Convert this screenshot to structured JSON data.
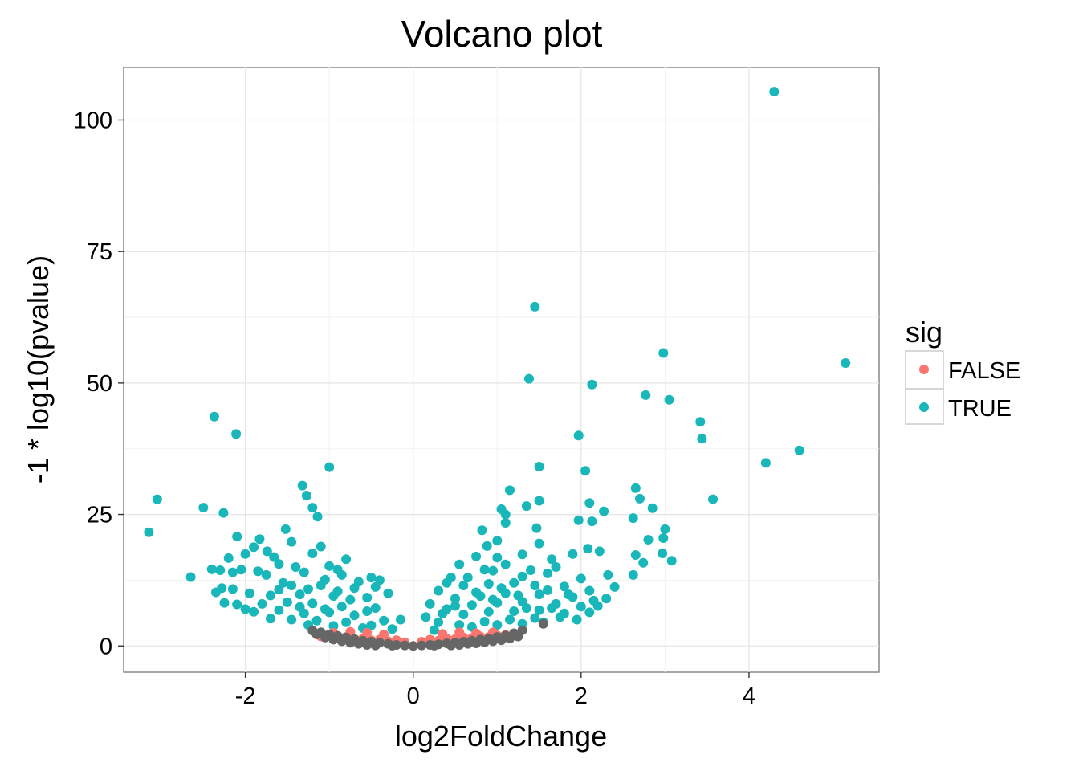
{
  "chart_data": {
    "type": "scatter",
    "title": "Volcano plot",
    "xlabel": "log2FoldChange",
    "ylabel": "-1 * log10(pvalue)",
    "xlim": [
      -3.45,
      5.55
    ],
    "ylim": [
      -5,
      110
    ],
    "x_ticks": [
      -2,
      0,
      2,
      4
    ],
    "y_ticks": [
      0,
      25,
      50,
      75,
      100
    ],
    "x_tick_labels": [
      "-2",
      "0",
      "2",
      "4"
    ],
    "y_tick_labels": [
      "0",
      "25",
      "50",
      "75",
      "100"
    ],
    "grid": true,
    "legend": {
      "title": "sig",
      "placement": "right",
      "entries": [
        {
          "label": "FALSE",
          "color": "#F8766D"
        },
        {
          "label": "TRUE",
          "color": "#19B7B9"
        }
      ]
    },
    "series": [
      {
        "name": "FALSE",
        "color": "#F8766D",
        "points": [
          [
            -1.1,
            1.8
          ],
          [
            -1.0,
            1.9
          ],
          [
            -0.9,
            1.5
          ],
          [
            -0.8,
            1.7
          ],
          [
            -0.7,
            1.3
          ],
          [
            -0.6,
            1.4
          ],
          [
            -0.5,
            1.1
          ],
          [
            -0.4,
            1.2
          ],
          [
            -0.3,
            0.9
          ],
          [
            -0.2,
            1.1
          ],
          [
            -0.1,
            0.7
          ],
          [
            0.1,
            0.8
          ],
          [
            0.2,
            1.2
          ],
          [
            0.3,
            1.0
          ],
          [
            0.4,
            1.4
          ],
          [
            0.5,
            1.3
          ],
          [
            0.6,
            1.6
          ],
          [
            0.7,
            1.5
          ],
          [
            0.8,
            1.8
          ],
          [
            0.9,
            1.7
          ],
          [
            1.0,
            2.0
          ],
          [
            1.1,
            2.1
          ],
          [
            -0.55,
            2.5
          ],
          [
            -0.35,
            2.2
          ],
          [
            0.35,
            2.3
          ],
          [
            0.55,
            2.6
          ],
          [
            0.75,
            2.4
          ],
          [
            -0.75,
            2.7
          ],
          [
            0.95,
            2.6
          ],
          [
            -0.95,
            2.5
          ]
        ]
      },
      {
        "name": "TRUE",
        "color": "#19B7B9",
        "points": [
          [
            4.3,
            105.4
          ],
          [
            1.45,
            64.5
          ],
          [
            2.98,
            55.7
          ],
          [
            5.15,
            53.8
          ],
          [
            1.38,
            50.8
          ],
          [
            2.13,
            49.7
          ],
          [
            2.77,
            47.7
          ],
          [
            3.05,
            46.8
          ],
          [
            -2.37,
            43.6
          ],
          [
            3.42,
            42.6
          ],
          [
            -2.11,
            40.3
          ],
          [
            1.97,
            40.0
          ],
          [
            3.44,
            39.4
          ],
          [
            4.6,
            37.2
          ],
          [
            4.2,
            34.8
          ],
          [
            -1.0,
            34.0
          ],
          [
            1.5,
            34.1
          ],
          [
            2.05,
            33.3
          ],
          [
            -1.32,
            30.5
          ],
          [
            2.65,
            30.0
          ],
          [
            -1.27,
            28.6
          ],
          [
            1.15,
            29.6
          ],
          [
            -3.05,
            27.9
          ],
          [
            3.57,
            27.9
          ],
          [
            2.7,
            28.0
          ],
          [
            1.5,
            27.6
          ],
          [
            2.1,
            27.2
          ],
          [
            -1.2,
            26.3
          ],
          [
            -2.5,
            26.3
          ],
          [
            1.05,
            26.0
          ],
          [
            1.35,
            26.6
          ],
          [
            2.85,
            26.2
          ],
          [
            -2.26,
            25.3
          ],
          [
            1.1,
            25.0
          ],
          [
            2.27,
            25.6
          ],
          [
            -1.14,
            24.6
          ],
          [
            1.97,
            23.9
          ],
          [
            2.13,
            23.7
          ],
          [
            1.47,
            22.4
          ],
          [
            3.0,
            22.2
          ],
          [
            -3.15,
            21.6
          ],
          [
            -1.52,
            22.2
          ],
          [
            1.1,
            23.4
          ],
          [
            0.82,
            22.0
          ],
          [
            2.62,
            24.3
          ],
          [
            -2.1,
            20.8
          ],
          [
            -1.83,
            20.3
          ],
          [
            1.0,
            20.0
          ],
          [
            2.8,
            20.2
          ],
          [
            2.98,
            20.5
          ],
          [
            -1.45,
            19.8
          ],
          [
            0.88,
            19.0
          ],
          [
            -1.9,
            18.8
          ],
          [
            -1.1,
            18.9
          ],
          [
            1.5,
            19.5
          ],
          [
            -1.74,
            18.0
          ],
          [
            2.08,
            18.5
          ],
          [
            2.22,
            18.0
          ],
          [
            0.75,
            17.0
          ],
          [
            1.65,
            16.5
          ],
          [
            2.65,
            17.3
          ],
          [
            2.97,
            17.6
          ],
          [
            -2.0,
            17.5
          ],
          [
            -1.66,
            16.9
          ],
          [
            -1.2,
            17.6
          ],
          [
            -0.8,
            16.5
          ],
          [
            -2.2,
            16.7
          ],
          [
            1.3,
            17.4
          ],
          [
            1.0,
            16.8
          ],
          [
            1.9,
            17.5
          ],
          [
            -2.15,
            14.0
          ],
          [
            -2.05,
            14.5
          ],
          [
            -1.6,
            15.6
          ],
          [
            -1.4,
            15.0
          ],
          [
            -1.0,
            15.2
          ],
          [
            3.08,
            16.2
          ],
          [
            2.74,
            15.8
          ],
          [
            0.55,
            15.5
          ],
          [
            1.7,
            15.0
          ],
          [
            -2.4,
            14.6
          ],
          [
            -2.3,
            14.4
          ],
          [
            -1.85,
            14.2
          ],
          [
            -1.3,
            14.0
          ],
          [
            -0.9,
            14.5
          ],
          [
            -0.5,
            13.0
          ],
          [
            -0.4,
            12.5
          ],
          [
            -1.75,
            13.5
          ],
          [
            -2.65,
            13.1
          ],
          [
            2.62,
            13.5
          ],
          [
            2.32,
            13.5
          ],
          [
            0.45,
            13.0
          ],
          [
            0.95,
            14.3
          ],
          [
            1.4,
            14.4
          ],
          [
            1.6,
            13.8
          ],
          [
            2.0,
            12.8
          ],
          [
            -2.28,
            11.0
          ],
          [
            -2.15,
            10.8
          ],
          [
            -1.55,
            12.0
          ],
          [
            -1.1,
            11.5
          ],
          [
            -0.7,
            11.0
          ],
          [
            -0.3,
            10.0
          ],
          [
            0.3,
            10.5
          ],
          [
            0.6,
            11.5
          ],
          [
            0.9,
            11.8
          ],
          [
            1.2,
            12.0
          ],
          [
            1.8,
            11.3
          ],
          [
            2.4,
            11.2
          ],
          [
            2.1,
            10.5
          ],
          [
            -2.35,
            10.2
          ],
          [
            -1.95,
            10.0
          ],
          [
            -1.7,
            9.6
          ],
          [
            -1.35,
            9.8
          ],
          [
            -0.95,
            9.5
          ],
          [
            -0.55,
            9.2
          ],
          [
            0.2,
            8.0
          ],
          [
            0.5,
            9.0
          ],
          [
            0.8,
            9.5
          ],
          [
            1.1,
            10.0
          ],
          [
            1.5,
            9.8
          ],
          [
            1.9,
            9.3
          ],
          [
            2.3,
            9.0
          ],
          [
            -2.25,
            8.2
          ],
          [
            -2.1,
            7.9
          ],
          [
            -1.8,
            8.0
          ],
          [
            -1.5,
            8.3
          ],
          [
            -1.2,
            8.1
          ],
          [
            -0.85,
            7.5
          ],
          [
            -0.45,
            7.2
          ],
          [
            -0.15,
            5.0
          ],
          [
            0.15,
            5.5
          ],
          [
            0.4,
            7.0
          ],
          [
            0.7,
            7.8
          ],
          [
            1.0,
            8.2
          ],
          [
            1.3,
            8.4
          ],
          [
            1.7,
            8.0
          ],
          [
            2.0,
            7.5
          ],
          [
            2.2,
            7.6
          ],
          [
            -2.0,
            7.0
          ],
          [
            -1.9,
            6.5
          ],
          [
            -1.6,
            6.8
          ],
          [
            -1.3,
            6.2
          ],
          [
            -1.0,
            6.4
          ],
          [
            -0.7,
            5.8
          ],
          [
            -0.35,
            4.8
          ],
          [
            0.3,
            4.5
          ],
          [
            0.6,
            6.0
          ],
          [
            0.9,
            6.5
          ],
          [
            1.2,
            6.6
          ],
          [
            1.5,
            6.8
          ],
          [
            1.8,
            6.2
          ],
          [
            2.1,
            6.4
          ],
          [
            -1.7,
            5.2
          ],
          [
            -1.45,
            5.0
          ],
          [
            -1.15,
            4.8
          ],
          [
            -0.8,
            4.5
          ],
          [
            -0.5,
            3.9
          ],
          [
            -0.25,
            3.2
          ],
          [
            0.25,
            3.0
          ],
          [
            0.55,
            4.0
          ],
          [
            0.85,
            4.6
          ],
          [
            1.15,
            5.0
          ],
          [
            1.45,
            5.3
          ],
          [
            1.75,
            5.5
          ],
          [
            1.95,
            5.0
          ],
          [
            -1.25,
            4.0
          ],
          [
            -0.95,
            3.8
          ],
          [
            -0.6,
            3.4
          ],
          [
            0.7,
            3.6
          ],
          [
            1.0,
            4.0
          ],
          [
            1.3,
            4.2
          ],
          [
            1.55,
            4.5
          ],
          [
            -0.85,
            13.5
          ],
          [
            -0.65,
            12.2
          ],
          [
            -0.45,
            11.2
          ],
          [
            0.4,
            12.0
          ],
          [
            0.65,
            13.0
          ],
          [
            0.85,
            14.5
          ],
          [
            1.1,
            15.5
          ],
          [
            1.3,
            13.2
          ],
          [
            1.45,
            11.5
          ],
          [
            -1.05,
            12.6
          ],
          [
            -1.25,
            10.8
          ],
          [
            -1.45,
            11.5
          ],
          [
            -0.75,
            8.8
          ],
          [
            -0.55,
            6.6
          ],
          [
            0.35,
            6.2
          ],
          [
            0.5,
            7.6
          ],
          [
            0.75,
            10.2
          ],
          [
            1.05,
            11.0
          ],
          [
            1.25,
            9.6
          ],
          [
            1.6,
            10.6
          ],
          [
            -1.6,
            10.7
          ],
          [
            -1.35,
            7.4
          ],
          [
            -1.05,
            7.0
          ],
          [
            -0.9,
            10.4
          ],
          [
            0.95,
            8.8
          ],
          [
            1.35,
            7.2
          ],
          [
            1.65,
            7.2
          ],
          [
            1.85,
            9.8
          ],
          [
            2.15,
            8.6
          ]
        ]
      },
      {
        "name": "",
        "color": "#666666",
        "points": [
          [
            -1.2,
            2.9
          ],
          [
            -1.1,
            2.6
          ],
          [
            -1.0,
            2.2
          ],
          [
            -0.9,
            1.9
          ],
          [
            -0.8,
            1.6
          ],
          [
            -0.7,
            1.3
          ],
          [
            -0.6,
            1.0
          ],
          [
            -0.5,
            0.8
          ],
          [
            -0.4,
            0.6
          ],
          [
            -0.3,
            0.4
          ],
          [
            -0.2,
            0.2
          ],
          [
            -0.1,
            0.1
          ],
          [
            0.0,
            0.0
          ],
          [
            0.1,
            0.1
          ],
          [
            0.2,
            0.2
          ],
          [
            0.3,
            0.3
          ],
          [
            0.4,
            0.5
          ],
          [
            0.5,
            0.6
          ],
          [
            0.6,
            0.8
          ],
          [
            0.7,
            1.0
          ],
          [
            0.8,
            1.2
          ],
          [
            0.9,
            1.4
          ],
          [
            1.0,
            1.7
          ],
          [
            1.1,
            2.0
          ],
          [
            1.2,
            2.4
          ],
          [
            1.3,
            3.0
          ],
          [
            1.55,
            4.2
          ],
          [
            -1.15,
            2.2
          ],
          [
            -1.05,
            1.6
          ],
          [
            -0.95,
            1.2
          ],
          [
            -0.85,
            0.9
          ],
          [
            -0.75,
            0.6
          ],
          [
            -0.65,
            0.4
          ],
          [
            -0.55,
            0.2
          ],
          [
            0.55,
            0.2
          ],
          [
            0.65,
            0.4
          ],
          [
            0.75,
            0.5
          ],
          [
            0.85,
            0.7
          ],
          [
            0.95,
            0.9
          ],
          [
            1.05,
            1.1
          ],
          [
            1.15,
            1.4
          ],
          [
            1.25,
            1.8
          ],
          [
            -0.45,
            0.1
          ],
          [
            0.45,
            0.1
          ],
          [
            -0.25,
            0.05
          ],
          [
            0.25,
            0.05
          ]
        ]
      }
    ]
  }
}
